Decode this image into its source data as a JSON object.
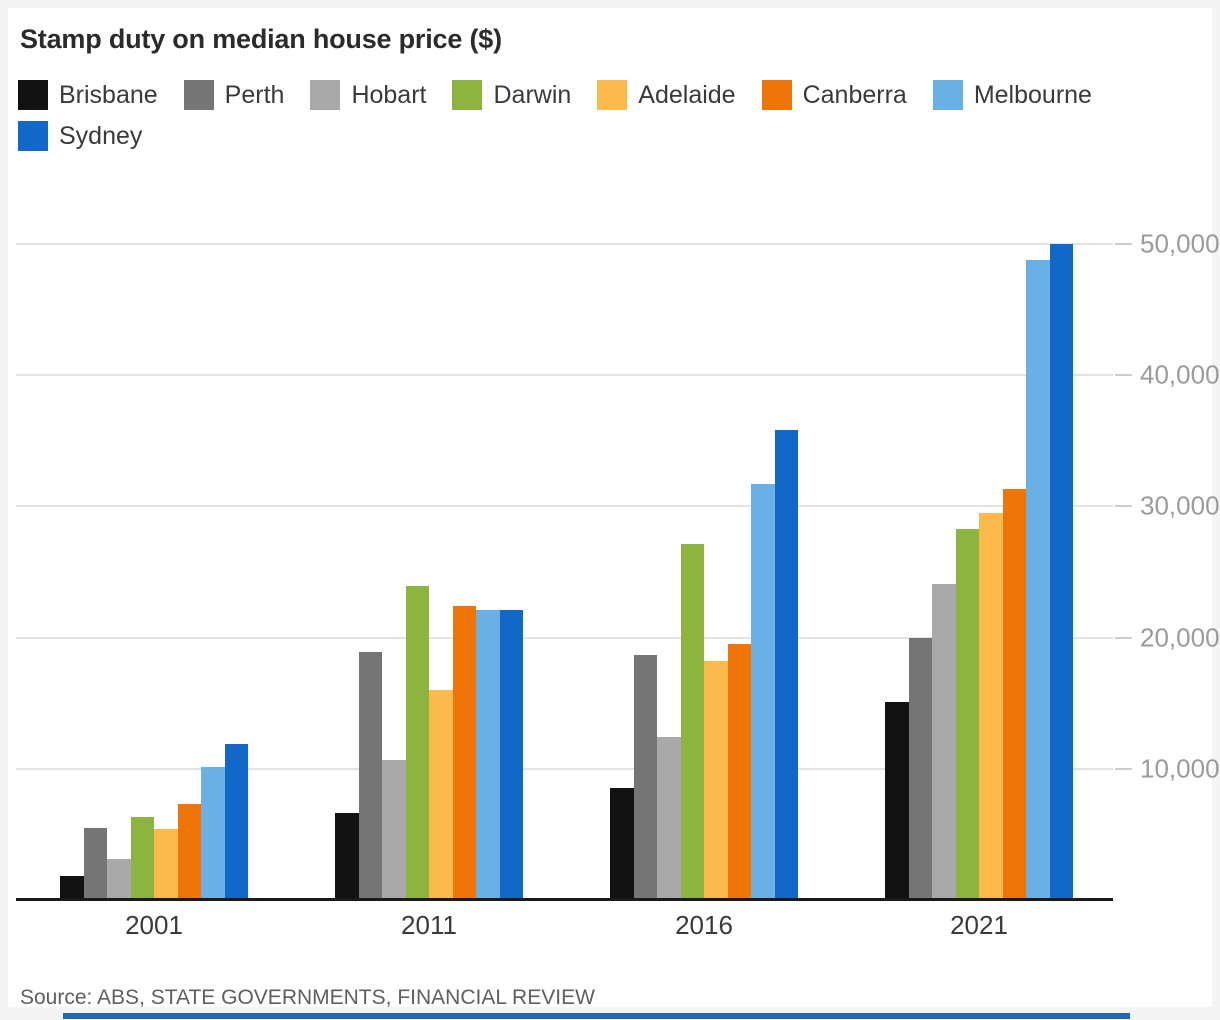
{
  "title": "Stamp duty on median house price ($)",
  "source": "Source: ABS, STATE GOVERNMENTS, FINANCIAL REVIEW",
  "chart_data": {
    "type": "bar",
    "title": "Stamp duty on median house price ($)",
    "categories": [
      "2001",
      "2011",
      "2016",
      "2021"
    ],
    "series": [
      {
        "name": "Brisbane",
        "color": "#121212",
        "values": [
          1800,
          6600,
          8500,
          15100
        ]
      },
      {
        "name": "Perth",
        "color": "#757575",
        "values": [
          5500,
          18900,
          18700,
          20000
        ]
      },
      {
        "name": "Hobart",
        "color": "#a9a9a9",
        "values": [
          3100,
          10700,
          12400,
          24100
        ]
      },
      {
        "name": "Darwin",
        "color": "#8cb43e",
        "values": [
          6300,
          23900,
          27100,
          28300
        ]
      },
      {
        "name": "Adelaide",
        "color": "#fcb94c",
        "values": [
          5400,
          16000,
          18200,
          29500
        ]
      },
      {
        "name": "Canberra",
        "color": "#f07508",
        "values": [
          7300,
          22400,
          19500,
          31300
        ]
      },
      {
        "name": "Melbourne",
        "color": "#68b0e6",
        "values": [
          10100,
          22100,
          31700,
          48800
        ]
      },
      {
        "name": "Sydney",
        "color": "#1168c8",
        "values": [
          11900,
          22100,
          35800,
          50000
        ]
      }
    ],
    "yticks": [
      {
        "value": 10000,
        "label": "10,000"
      },
      {
        "value": 20000,
        "label": "20,000"
      },
      {
        "value": 30000,
        "label": "30,000"
      },
      {
        "value": 40000,
        "label": "40,000"
      },
      {
        "value": 50000,
        "label": "50,000"
      }
    ],
    "ylim": [
      0,
      52000
    ],
    "grid": true,
    "legend_position": "top",
    "xlabel": "",
    "ylabel": ""
  },
  "colors": {
    "page_bg": "#f4f4f4",
    "card_bg": "#ffffff",
    "gridline": "#e3e3e3",
    "axis": "#1a1a1a",
    "tick_label": "#9b9b9b",
    "footer_bar": "#2268b2"
  }
}
